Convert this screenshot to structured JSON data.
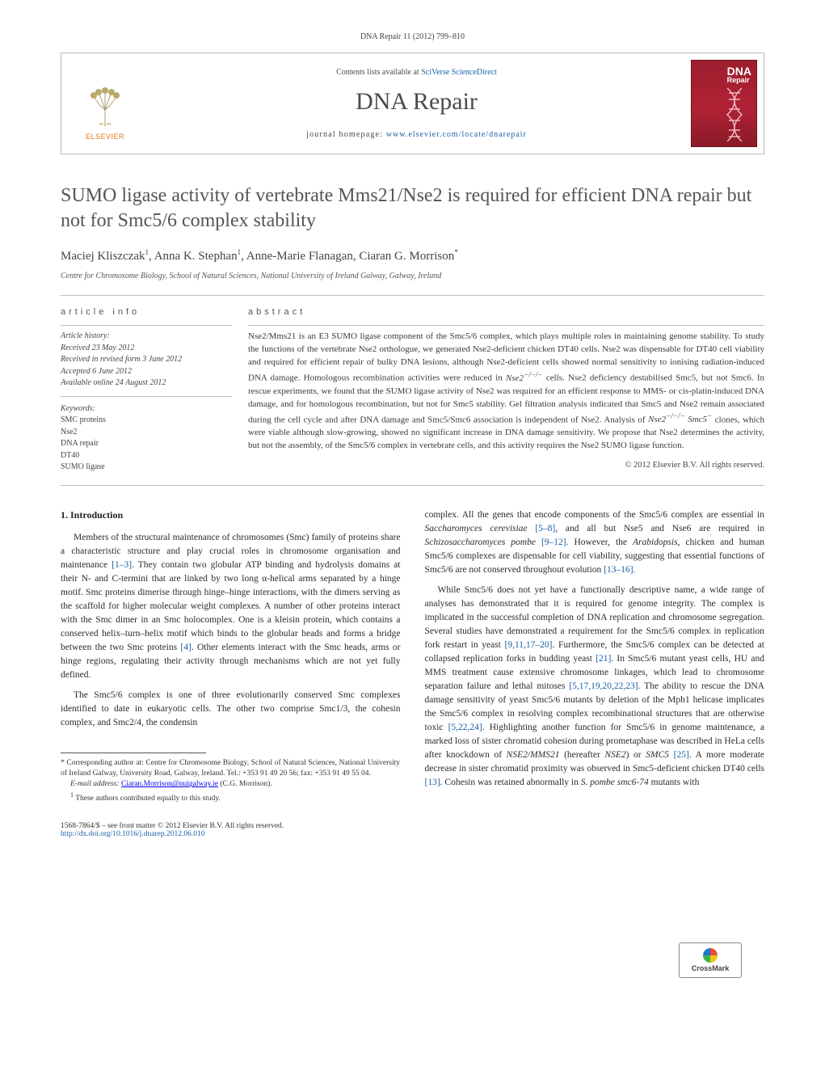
{
  "citation": {
    "journal": "DNA Repair",
    "volume_pages": "11 (2012) 799–810"
  },
  "header": {
    "contents_prefix": "Contents lists available at ",
    "contents_link": "SciVerse ScienceDirect",
    "journal_title": "DNA Repair",
    "homepage_prefix": "journal homepage: ",
    "homepage_url": "www.elsevier.com/locate/dnarepair",
    "publisher_name": "ELSEVIER",
    "cover_label_top": "DNA",
    "cover_label_sub": "Repair"
  },
  "article": {
    "title": "SUMO ligase activity of vertebrate Mms21/Nse2 is required for efficient DNA repair but not for Smc5/6 complex stability",
    "authors_html": "Maciej Kliszczak<sup>1</sup>, Anna K. Stephan<sup>1</sup>, Anne-Marie Flanagan, Ciaran G. Morrison<sup>*</sup>",
    "affiliation": "Centre for Chromosome Biology, School of Natural Sciences, National University of Ireland Galway, Galway, Ireland"
  },
  "info": {
    "heading": "article info",
    "history_label": "Article history:",
    "received": "Received 23 May 2012",
    "revised": "Received in revised form 3 June 2012",
    "accepted": "Accepted 6 June 2012",
    "online": "Available online 24 August 2012",
    "keywords_label": "Keywords:",
    "keywords": [
      "SMC proteins",
      "Nse2",
      "DNA repair",
      "DT40",
      "SUMO ligase"
    ]
  },
  "abstract": {
    "heading": "abstract",
    "text": "Nse2/Mms21 is an E3 SUMO ligase component of the Smc5/6 complex, which plays multiple roles in maintaining genome stability. To study the functions of the vertebrate Nse2 orthologue, we generated Nse2-deficient chicken DT40 cells. Nse2 was dispensable for DT40 cell viability and required for efficient repair of bulky DNA lesions, although Nse2-deficient cells showed normal sensitivity to ionising radiation-induced DNA damage. Homologous recombination activities were reduced in Nse2−/−/− cells. Nse2 deficiency destabilised Smc5, but not Smc6. In rescue experiments, we found that the SUMO ligase activity of Nse2 was required for an efficient response to MMS- or cis-platin-induced DNA damage, and for homologous recombination, but not for Smc5 stability. Gel filtration analysis indicated that Smc5 and Nse2 remain associated during the cell cycle and after DNA damage and Smc5/Smc6 association is independent of Nse2. Analysis of Nse2−/−/− Smc5− clones, which were viable although slow-growing, showed no significant increase in DNA damage sensitivity. We propose that Nse2 determines the activity, but not the assembly, of the Smc5/6 complex in vertebrate cells, and this activity requires the Nse2 SUMO ligase function.",
    "copyright": "© 2012 Elsevier B.V. All rights reserved."
  },
  "body": {
    "section_heading": "1. Introduction",
    "left_paragraphs": [
      "Members of the structural maintenance of chromosomes (Smc) family of proteins share a characteristic structure and play crucial roles in chromosome organisation and maintenance [1–3]. They contain two globular ATP binding and hydrolysis domains at their N- and C-termini that are linked by two long α-helical arms separated by a hinge motif. Smc proteins dimerise through hinge–hinge interactions, with the dimers serving as the scaffold for higher molecular weight complexes. A number of other proteins interact with the Smc dimer in an Smc holocomplex. One is a kleisin protein, which contains a conserved helix–turn–helix motif which binds to the globular heads and forms a bridge between the two Smc proteins [4]. Other elements interact with the Smc heads, arms or hinge regions, regulating their activity through mechanisms which are not yet fully defined.",
      "The Smc5/6 complex is one of three evolutionarily conserved Smc complexes identified to date in eukaryotic cells. The other two comprise Smc1/3, the cohesin complex, and Smc2/4, the condensin"
    ],
    "right_paragraphs": [
      "complex. All the genes that encode components of the Smc5/6 complex are essential in Saccharomyces cerevisiae [5–8], and all but Nse5 and Nse6 are required in Schizosaccharomyces pombe [9–12]. However, the Arabidopsis, chicken and human Smc5/6 complexes are dispensable for cell viability, suggesting that essential functions of Smc5/6 are not conserved throughout evolution [13–16].",
      "While Smc5/6 does not yet have a functionally descriptive name, a wide range of analyses has demonstrated that it is required for genome integrity. The complex is implicated in the successful completion of DNA replication and chromosome segregation. Several studies have demonstrated a requirement for the Smc5/6 complex in replication fork restart in yeast [9,11,17–20]. Furthermore, the Smc5/6 complex can be detected at collapsed replication forks in budding yeast [21]. In Smc5/6 mutant yeast cells, HU and MMS treatment cause extensive chromosome linkages, which lead to chromosome separation failure and lethal mitoses [5,17,19,20,22,23]. The ability to rescue the DNA damage sensitivity of yeast Smc5/6 mutants by deletion of the Mph1 helicase implicates the Smc5/6 complex in resolving complex recombinational structures that are otherwise toxic [5,22,24]. Highlighting another function for Smc5/6 in genome maintenance, a marked loss of sister chromatid cohesion during prometaphase was described in HeLa cells after knockdown of NSE2/MMS21 (hereafter NSE2) or SMC5 [25]. A more moderate decrease in sister chromatid proximity was observed in Smc5-deficient chicken DT40 cells [13]. Cohesin was retained abnormally in S. pombe smc6-74 mutants with"
    ],
    "refs": {
      "r1_3": "[1–3]",
      "r4": "[4]",
      "r5_8": "[5–8]",
      "r9_12": "[9–12]",
      "r13_16": "[13–16]",
      "r9_11_17_20": "[9,11,17–20]",
      "r21": "[21]",
      "r5_17_19_20_22_23": "[5,17,19,20,22,23]",
      "r5_22_24": "[5,22,24]",
      "r25": "[25]",
      "r13": "[13]"
    }
  },
  "footnotes": {
    "corr": "Corresponding author at: Centre for Chromosome Biology, School of Natural Sciences, National University of Ireland Galway, University Road, Galway, Ireland. Tel.: +353 91 49 20 56; fax: +353 91 49 55 04.",
    "email_label": "E-mail address:",
    "email": "Ciaran.Morrison@nuigalway.ie",
    "email_who": " (C.G. Morrison).",
    "equal": "These authors contributed equally to this study."
  },
  "footer": {
    "issn_line": "1568-7864/$ – see front matter © 2012 Elsevier B.V. All rights reserved.",
    "doi": "http://dx.doi.org/10.1016/j.dnarep.2012.06.010",
    "crossmark_label": "CrossMark"
  },
  "colors": {
    "link": "#1960a8",
    "rule": "#bcbcbc",
    "elsevier_orange": "#e67817",
    "cover_bg": "#9c1e2e",
    "text": "#3a3a3a"
  },
  "typography": {
    "body_fontsize_pt": 9,
    "title_fontsize_pt": 18,
    "journal_title_fontsize_pt": 22,
    "abstract_fontsize_pt": 8.5
  }
}
